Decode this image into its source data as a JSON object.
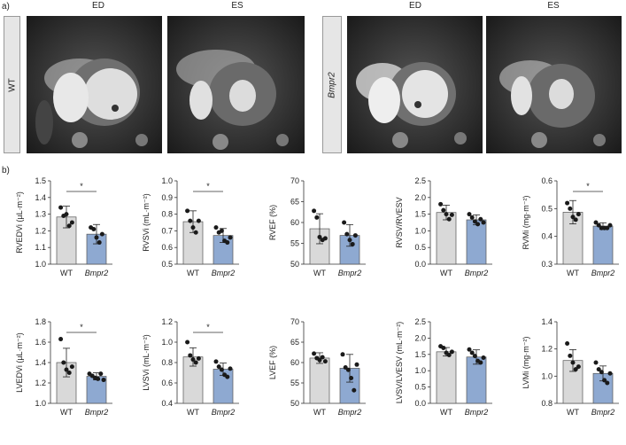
{
  "labels": {
    "panel_a": "a)",
    "panel_b": "b)",
    "row_label_wt": "WT",
    "row_label_bmpr2": "Bmpr2",
    "ed": "ED",
    "es": "ES"
  },
  "colors": {
    "wt_bar": "#d9d9d9",
    "bmpr2_bar": "#8ea9d1",
    "bar_edge": "#555555",
    "point": "#1a1a1a"
  },
  "chart_data": [
    {
      "type": "bar",
      "ylabel": "RVEDVi (µL·m⁻²)",
      "categories": [
        "WT",
        "Bmpr2"
      ],
      "values": [
        1.283,
        1.18
      ],
      "errors": [
        0.065,
        0.058
      ],
      "ylim": [
        1.0,
        1.5
      ],
      "yticks": [
        "1.0",
        "1.1",
        "1.2",
        "1.3",
        "1.4",
        "1.5"
      ],
      "points": [
        [
          1.34,
          1.29,
          1.3,
          1.23,
          1.25
        ],
        [
          1.22,
          1.21,
          1.16,
          1.13,
          1.18
        ]
      ],
      "significance": "*"
    },
    {
      "type": "bar",
      "ylabel": "RVSVi (mL·m⁻²)",
      "categories": [
        "WT",
        "Bmpr2"
      ],
      "values": [
        0.755,
        0.672
      ],
      "errors": [
        0.065,
        0.042
      ],
      "ylim": [
        0.5,
        1.0
      ],
      "yticks": [
        "0.5",
        "0.6",
        "0.7",
        "0.8",
        "0.9",
        "1.0"
      ],
      "points": [
        [
          0.82,
          0.76,
          0.72,
          0.69,
          0.76
        ],
        [
          0.72,
          0.69,
          0.7,
          0.64,
          0.63,
          0.66
        ]
      ],
      "significance": "*"
    },
    {
      "type": "bar",
      "ylabel": "RVEF (%)",
      "categories": [
        "WT",
        "Bmpr2"
      ],
      "values": [
        58.5,
        56.9
      ],
      "errors": [
        3.6,
        2.6
      ],
      "ylim": [
        50,
        70
      ],
      "yticks": [
        "50",
        "55",
        "60",
        "65",
        "70"
      ],
      "points": [
        [
          62.8,
          61.2,
          56.5,
          55.8,
          56.2
        ],
        [
          60.0,
          57.2,
          55.8,
          54.8,
          56.9
        ]
      ],
      "significance": ""
    },
    {
      "type": "bar",
      "ylabel": "RVSV/RVESV",
      "categories": [
        "WT",
        "Bmpr2"
      ],
      "values": [
        1.55,
        1.33
      ],
      "errors": [
        0.22,
        0.15
      ],
      "ylim": [
        0.0,
        2.5
      ],
      "yticks": [
        "0.0",
        "0.5",
        "1.0",
        "1.5",
        "2.0",
        "2.5"
      ],
      "points": [
        [
          1.8,
          1.62,
          1.5,
          1.35,
          1.48
        ],
        [
          1.5,
          1.4,
          1.28,
          1.2,
          1.35,
          1.25
        ]
      ],
      "significance": ""
    },
    {
      "type": "bar",
      "ylabel": "RVMi (mg·m⁻²)",
      "categories": [
        "WT",
        "Bmpr2"
      ],
      "values": [
        0.487,
        0.437
      ],
      "errors": [
        0.042,
        0.012
      ],
      "ylim": [
        0.3,
        0.6
      ],
      "yticks": [
        "0.3",
        "0.4",
        "0.5",
        "0.6"
      ],
      "points": [
        [
          0.52,
          0.5,
          0.47,
          0.46,
          0.48
        ],
        [
          0.45,
          0.44,
          0.43,
          0.43,
          0.43,
          0.44
        ]
      ],
      "significance": "*"
    },
    {
      "type": "bar",
      "ylabel": "LVEDVi (µL·m⁻²)",
      "categories": [
        "WT",
        "Bmpr2"
      ],
      "values": [
        1.4,
        1.265
      ],
      "errors": [
        0.14,
        0.035
      ],
      "ylim": [
        1.0,
        1.8
      ],
      "yticks": [
        "1.0",
        "1.2",
        "1.4",
        "1.6",
        "1.8"
      ],
      "points": [
        [
          1.63,
          1.4,
          1.33,
          1.3,
          1.36
        ],
        [
          1.29,
          1.27,
          1.25,
          1.24,
          1.29,
          1.23
        ]
      ],
      "significance": "*"
    },
    {
      "type": "bar",
      "ylabel": "LVSVi (mL·m⁻²)",
      "categories": [
        "WT",
        "Bmpr2"
      ],
      "values": [
        0.855,
        0.735
      ],
      "errors": [
        0.09,
        0.06
      ],
      "ylim": [
        0.4,
        1.2
      ],
      "yticks": [
        "0.4",
        "0.6",
        "0.8",
        "1.0",
        "1.2"
      ],
      "points": [
        [
          1.0,
          0.87,
          0.83,
          0.8,
          0.84
        ],
        [
          0.81,
          0.76,
          0.73,
          0.68,
          0.66,
          0.74
        ]
      ],
      "significance": "*"
    },
    {
      "type": "bar",
      "ylabel": "LVEF (%)",
      "categories": [
        "WT",
        "Bmpr2"
      ],
      "values": [
        61.1,
        58.6
      ],
      "errors": [
        1.3,
        3.4
      ],
      "ylim": [
        50,
        70
      ],
      "yticks": [
        "50",
        "55",
        "60",
        "65",
        "70"
      ],
      "points": [
        [
          62.2,
          61.1,
          60.6,
          61.3,
          60.3
        ],
        [
          62.0,
          58.8,
          58.2,
          56.2,
          53.2,
          59.5
        ]
      ],
      "significance": ""
    },
    {
      "type": "bar",
      "ylabel": "LVSV/LVESV (mL·m⁻²)",
      "categories": [
        "WT",
        "Bmpr2"
      ],
      "values": [
        1.58,
        1.42
      ],
      "errors": [
        0.13,
        0.22
      ],
      "ylim": [
        0.0,
        2.5
      ],
      "yticks": [
        "0.0",
        "0.5",
        "1.0",
        "1.5",
        "2.0",
        "2.5"
      ],
      "points": [
        [
          1.75,
          1.7,
          1.55,
          1.48,
          1.58
        ],
        [
          1.65,
          1.55,
          1.45,
          1.3,
          1.25,
          1.4
        ]
      ],
      "significance": ""
    },
    {
      "type": "bar",
      "ylabel": "LVMi (mg·m⁻²)",
      "categories": [
        "WT",
        "Bmpr2"
      ],
      "values": [
        1.115,
        1.02
      ],
      "errors": [
        0.08,
        0.055
      ],
      "ylim": [
        0.8,
        1.4
      ],
      "yticks": [
        "0.8",
        "1.0",
        "1.2",
        "1.4"
      ],
      "points": [
        [
          1.24,
          1.15,
          1.1,
          1.05,
          1.07
        ],
        [
          1.1,
          1.05,
          1.03,
          0.97,
          0.95,
          1.02
        ]
      ],
      "significance": ""
    }
  ]
}
